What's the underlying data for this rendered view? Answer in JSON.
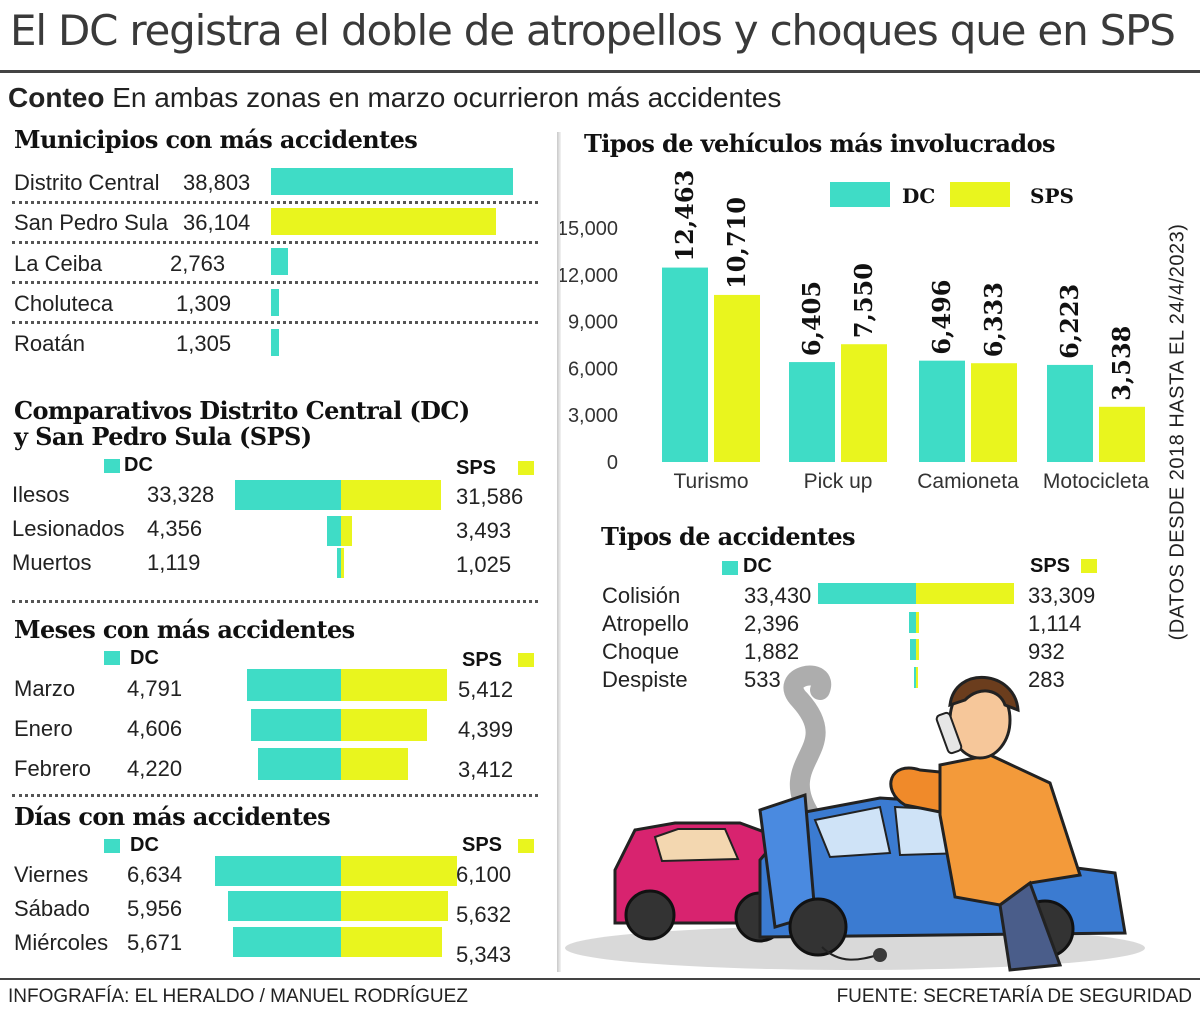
{
  "title": "El DC registra el doble de atropellos y choques que en SPS",
  "subtitle": {
    "lead": "Conteo",
    "text": "En ambas zonas en marzo ocurrieron más accidentes"
  },
  "legend": {
    "dc": "DC",
    "sps": "SPS"
  },
  "colors": {
    "dc": "#3fdcc6",
    "sps": "#e9f51e"
  },
  "municipios": {
    "title": "Municipios con más accidentes",
    "rows": [
      {
        "name": "Distrito Central",
        "value": "38,803",
        "series": "dc"
      },
      {
        "name": "San Pedro Sula",
        "value": "36,104",
        "series": "sps"
      },
      {
        "name": "La Ceiba",
        "value": "2,763",
        "series": "dc"
      },
      {
        "name": "Choluteca",
        "value": "1,309",
        "series": "dc"
      },
      {
        "name": "Roatán",
        "value": "1,305",
        "series": "dc"
      }
    ]
  },
  "comparativos": {
    "title_line1": "Comparativos Distrito Central (DC)",
    "title_line2": "y San Pedro Sula (SPS)",
    "rows": [
      {
        "name": "Ilesos",
        "dc": "33,328",
        "sps": "31,586"
      },
      {
        "name": "Lesionados",
        "dc": "4,356",
        "sps": "3,493"
      },
      {
        "name": "Muertos",
        "dc": "1,119",
        "sps": "1,025"
      }
    ]
  },
  "meses": {
    "title": "Meses con más accidentes",
    "rows": [
      {
        "name": "Marzo",
        "dc": "4,791",
        "sps": "5,412"
      },
      {
        "name": "Enero",
        "dc": "4,606",
        "sps": "4,399"
      },
      {
        "name": "Febrero",
        "dc": "4,220",
        "sps": "3,412"
      }
    ]
  },
  "dias": {
    "title": "Días con más accidentes",
    "rows": [
      {
        "name": "Viernes",
        "dc": "6,634",
        "sps": "6,100"
      },
      {
        "name": "Sábado",
        "dc": "5,956",
        "sps": "5,632"
      },
      {
        "name": "Miércoles",
        "dc": "5,671",
        "sps": "5,343"
      }
    ]
  },
  "vehiculos": {
    "title": "Tipos de vehículos más involucrados",
    "y_ticks": [
      "15,000",
      "12,000",
      "9,000",
      "6,000",
      "3,000",
      "0"
    ]
  },
  "accidentes": {
    "title": "Tipos de accidentes",
    "rows": [
      {
        "name": "Colisión",
        "dc": "33,430",
        "sps": "33,309"
      },
      {
        "name": "Atropello",
        "dc": "2,396",
        "sps": "1,114"
      },
      {
        "name": "Choque",
        "dc": "1,882",
        "sps": "932"
      },
      {
        "name": "Despiste",
        "dc": "533",
        "sps": "283"
      }
    ]
  },
  "note": "(DATOS DESDE 2018 HASTA EL 24/4/2023)",
  "credit": "INFOGRAFÍA: EL HERALDO / MANUEL RODRÍGUEZ",
  "source": "FUENTE: SECRETARÍA DE SEGURIDAD",
  "chart_data": [
    {
      "type": "bar",
      "orientation": "horizontal",
      "title": "Municipios con más accidentes",
      "categories": [
        "Distrito Central",
        "San Pedro Sula",
        "La Ceiba",
        "Choluteca",
        "Roatán"
      ],
      "values": [
        38803,
        36104,
        2763,
        1309,
        1305
      ]
    },
    {
      "type": "bar",
      "orientation": "horizontal-diverging",
      "title": "Comparativos Distrito Central (DC) y San Pedro Sula (SPS)",
      "categories": [
        "Ilesos",
        "Lesionados",
        "Muertos"
      ],
      "series": [
        {
          "name": "DC",
          "values": [
            33328,
            4356,
            1119
          ]
        },
        {
          "name": "SPS",
          "values": [
            31586,
            3493,
            1025
          ]
        }
      ]
    },
    {
      "type": "bar",
      "orientation": "horizontal-diverging",
      "title": "Meses con más accidentes",
      "categories": [
        "Marzo",
        "Enero",
        "Febrero"
      ],
      "series": [
        {
          "name": "DC",
          "values": [
            4791,
            4606,
            4220
          ]
        },
        {
          "name": "SPS",
          "values": [
            5412,
            4399,
            3412
          ]
        }
      ]
    },
    {
      "type": "bar",
      "orientation": "horizontal-diverging",
      "title": "Días con más accidentes",
      "categories": [
        "Viernes",
        "Sábado",
        "Miércoles"
      ],
      "series": [
        {
          "name": "DC",
          "values": [
            6634,
            5956,
            5671
          ]
        },
        {
          "name": "SPS",
          "values": [
            6100,
            5632,
            5343
          ]
        }
      ]
    },
    {
      "type": "bar",
      "orientation": "vertical",
      "title": "Tipos de vehículos más involucrados",
      "categories": [
        "Turismo",
        "Pick up",
        "Camioneta",
        "Motocicleta"
      ],
      "series": [
        {
          "name": "DC",
          "values": [
            12463,
            6405,
            6496,
            6223
          ],
          "labels": [
            "12,463",
            "6,405",
            "6,496",
            "6,223"
          ]
        },
        {
          "name": "SPS",
          "values": [
            10710,
            7550,
            6333,
            3538
          ],
          "labels": [
            "10,710",
            "7,550",
            "6,333",
            "3,538"
          ]
        }
      ],
      "ylim": [
        0,
        15000
      ],
      "legend": "top-right",
      "grid": false
    },
    {
      "type": "bar",
      "orientation": "horizontal-diverging",
      "title": "Tipos de accidentes",
      "categories": [
        "Colisión",
        "Atropello",
        "Choque",
        "Despiste"
      ],
      "series": [
        {
          "name": "DC",
          "values": [
            33430,
            2396,
            1882,
            533
          ]
        },
        {
          "name": "SPS",
          "values": [
            33309,
            1114,
            932,
            283
          ]
        }
      ]
    }
  ]
}
